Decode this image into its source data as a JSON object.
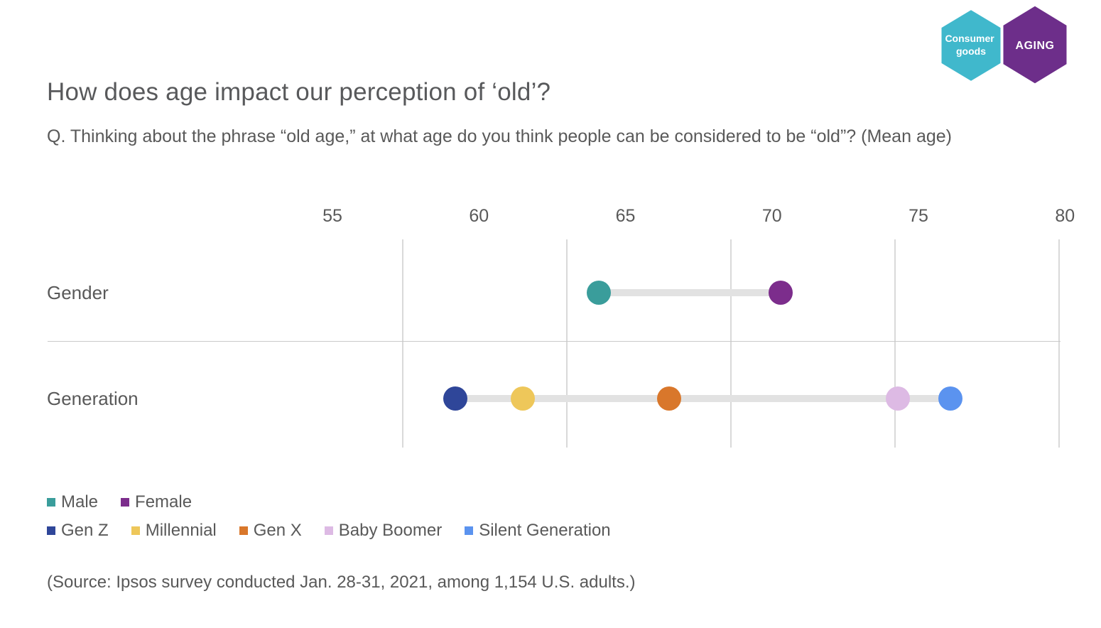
{
  "logo": {
    "left_badge": {
      "lines": [
        "Consumer",
        "goods"
      ],
      "color": "#40B8CC",
      "text_color": "#FFFFFF"
    },
    "right_badge": {
      "label": "AGING",
      "color": "#6D2E8A",
      "text_color": "#FFFFFF"
    }
  },
  "header": {
    "title": "How does age impact our perception of ‘old’?",
    "subtitle": "Q. Thinking about the phrase “old age,” at what age do you think people can be considered to be “old”? (Mean age)"
  },
  "chart_data": {
    "type": "dumbbell",
    "title": "How does age impact our perception of ‘old’?",
    "question": "Q. Thinking about the phrase “old age,” at what age do you think people can be considered to be “old”? (Mean age)",
    "unit": "Mean age (years)",
    "axis": {
      "min": 55,
      "max": 80,
      "ticks": [
        55,
        60,
        65,
        70,
        75,
        80
      ]
    },
    "grid": "vertical-lines",
    "legend_position": "bottom",
    "rows": [
      {
        "label": "Gender",
        "points": [
          {
            "name": "Male",
            "value": 64.1,
            "color": "#3A9D9B"
          },
          {
            "name": "Female",
            "value": 70.3,
            "color": "#7C2D8C"
          }
        ]
      },
      {
        "label": "Generation",
        "points": [
          {
            "name": "Gen Z",
            "value": 59.2,
            "color": "#2F4699"
          },
          {
            "name": "Millennial",
            "value": 61.5,
            "color": "#EEC75A"
          },
          {
            "name": "Gen X",
            "value": 66.5,
            "color": "#D9772B"
          },
          {
            "name": "Baby Boomer",
            "value": 74.3,
            "color": "#DDBAE4"
          },
          {
            "name": "Silent Generation",
            "value": 76.1,
            "color": "#5B93EF"
          }
        ]
      }
    ],
    "connector_color": "#E2E2E2"
  },
  "legend": {
    "rows": [
      [
        {
          "label": "Male",
          "color": "#3A9D9B"
        },
        {
          "label": "Female",
          "color": "#7C2D8C"
        }
      ],
      [
        {
          "label": "Gen Z",
          "color": "#2F4699"
        },
        {
          "label": "Millennial",
          "color": "#EEC75A"
        },
        {
          "label": "Gen X",
          "color": "#D9772B"
        },
        {
          "label": "Baby Boomer",
          "color": "#DDBAE4"
        },
        {
          "label": "Silent Generation",
          "color": "#5B93EF"
        }
      ]
    ]
  },
  "source": "(Source: Ipsos survey conducted Jan. 28-31, 2021, among 1,154 U.S. adults.)"
}
